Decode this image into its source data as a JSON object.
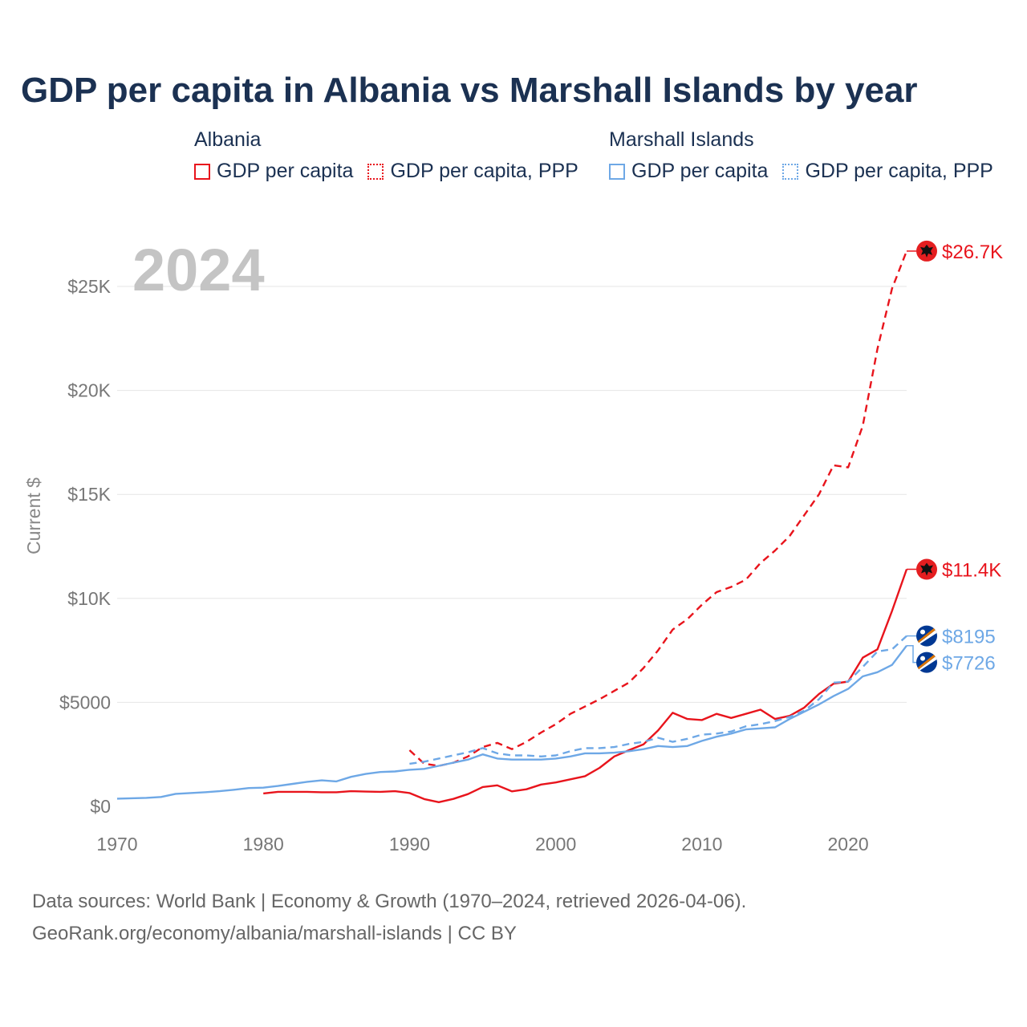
{
  "title": "GDP per capita in Albania vs Marshall Islands by year",
  "legend": {
    "albania": {
      "heading": "Albania",
      "items": [
        "GDP per capita",
        "GDP per capita, PPP"
      ]
    },
    "marshall": {
      "heading": "Marshall Islands",
      "items": [
        "GDP per capita",
        "GDP per capita, PPP"
      ]
    }
  },
  "colors": {
    "albania": "#e8141c",
    "marshall": "#6ea8e6",
    "grid": "#e6e6e6"
  },
  "footer": {
    "line1": "Data sources: World Bank | Economy & Growth (1970–2024, retrieved 2026-04-06).",
    "line2": "GeoRank.org/economy/albania/marshall-islands | CC BY"
  },
  "chart_data": {
    "type": "line",
    "title": "GDP per capita in Albania vs Marshall Islands by year",
    "xlabel": "",
    "ylabel": "Current $",
    "year_watermark": "2024",
    "xlim": [
      1970,
      2024
    ],
    "ylim": [
      0,
      27000
    ],
    "x_ticks": [
      1970,
      1980,
      1990,
      2000,
      2010,
      2020
    ],
    "x_tick_labels": [
      "1970",
      "1980",
      "1990",
      "2000",
      "2010",
      "2020"
    ],
    "y_ticks": [
      0,
      5000,
      10000,
      15000,
      20000,
      25000
    ],
    "y_tick_labels": [
      "$0",
      "$5000",
      "$10K",
      "$15K",
      "$20K",
      "$25K"
    ],
    "series": [
      {
        "name": "Albania GDP per capita",
        "country": "albania",
        "dashed": false,
        "end_label": "$11.4K",
        "x": [
          1980,
          1981,
          1982,
          1983,
          1984,
          1985,
          1986,
          1987,
          1988,
          1989,
          1990,
          1991,
          1992,
          1993,
          1994,
          1995,
          1996,
          1997,
          1998,
          1999,
          2000,
          2001,
          2002,
          2003,
          2004,
          2005,
          2006,
          2007,
          2008,
          2009,
          2010,
          2011,
          2012,
          2013,
          2014,
          2015,
          2016,
          2017,
          2018,
          2019,
          2020,
          2021,
          2022,
          2023,
          2024
        ],
        "values": [
          620,
          700,
          700,
          700,
          680,
          680,
          730,
          710,
          700,
          730,
          640,
          350,
          200,
          360,
          590,
          930,
          1010,
          720,
          820,
          1050,
          1150,
          1300,
          1450,
          1850,
          2400,
          2700,
          2980,
          3650,
          4500,
          4200,
          4150,
          4450,
          4250,
          4450,
          4650,
          4200,
          4350,
          4750,
          5400,
          5900,
          6000,
          7150,
          7550,
          9400,
          11400
        ]
      },
      {
        "name": "Albania GDP per capita, PPP",
        "country": "albania",
        "dashed": true,
        "end_label": "$26.7K",
        "x": [
          1990,
          1991,
          1992,
          1993,
          1994,
          1995,
          1996,
          1997,
          1998,
          1999,
          2000,
          2001,
          2002,
          2003,
          2004,
          2005,
          2006,
          2007,
          2008,
          2009,
          2010,
          2011,
          2012,
          2013,
          2014,
          2015,
          2016,
          2017,
          2018,
          2019,
          2020,
          2021,
          2022,
          2023,
          2024
        ],
        "values": [
          2700,
          2050,
          1950,
          2100,
          2400,
          2850,
          3050,
          2750,
          3100,
          3550,
          3950,
          4450,
          4800,
          5150,
          5550,
          5950,
          6650,
          7500,
          8500,
          9000,
          9700,
          10300,
          10550,
          10900,
          11700,
          12300,
          13000,
          14000,
          15000,
          16400,
          16300,
          18300,
          22000,
          24900,
          26700
        ]
      },
      {
        "name": "Marshall Islands GDP per capita",
        "country": "marshall",
        "dashed": false,
        "end_label": "$7726",
        "x": [
          1970,
          1971,
          1972,
          1973,
          1974,
          1975,
          1976,
          1977,
          1978,
          1979,
          1980,
          1981,
          1982,
          1983,
          1984,
          1985,
          1986,
          1987,
          1988,
          1989,
          1990,
          1991,
          1992,
          1993,
          1994,
          1995,
          1996,
          1997,
          1998,
          1999,
          2000,
          2001,
          2002,
          2003,
          2004,
          2005,
          2006,
          2007,
          2008,
          2009,
          2010,
          2011,
          2012,
          2013,
          2014,
          2015,
          2016,
          2017,
          2018,
          2019,
          2020,
          2021,
          2022,
          2023,
          2024
        ],
        "values": [
          370,
          390,
          410,
          450,
          600,
          640,
          680,
          730,
          800,
          880,
          900,
          980,
          1080,
          1180,
          1250,
          1200,
          1420,
          1560,
          1650,
          1680,
          1760,
          1800,
          1950,
          2100,
          2250,
          2500,
          2300,
          2250,
          2250,
          2250,
          2300,
          2400,
          2550,
          2550,
          2580,
          2650,
          2750,
          2900,
          2850,
          2900,
          3150,
          3350,
          3500,
          3700,
          3750,
          3800,
          4200,
          4550,
          4900,
          5300,
          5650,
          6250,
          6450,
          6800,
          7726
        ]
      },
      {
        "name": "Marshall Islands GDP per capita, PPP",
        "country": "marshall",
        "dashed": true,
        "end_label": "$8195",
        "x": [
          1990,
          1991,
          1992,
          1993,
          1994,
          1995,
          1996,
          1997,
          1998,
          1999,
          2000,
          2001,
          2002,
          2003,
          2004,
          2005,
          2006,
          2007,
          2008,
          2009,
          2010,
          2011,
          2012,
          2013,
          2014,
          2015,
          2016,
          2017,
          2018,
          2019,
          2020,
          2021,
          2022,
          2023,
          2024
        ],
        "values": [
          2050,
          2150,
          2300,
          2450,
          2600,
          2800,
          2550,
          2450,
          2450,
          2400,
          2450,
          2650,
          2800,
          2800,
          2850,
          3000,
          3100,
          3300,
          3100,
          3250,
          3450,
          3500,
          3600,
          3850,
          3950,
          4100,
          4300,
          4600,
          5150,
          5950,
          6000,
          6700,
          7450,
          7550,
          8195
        ]
      }
    ]
  }
}
